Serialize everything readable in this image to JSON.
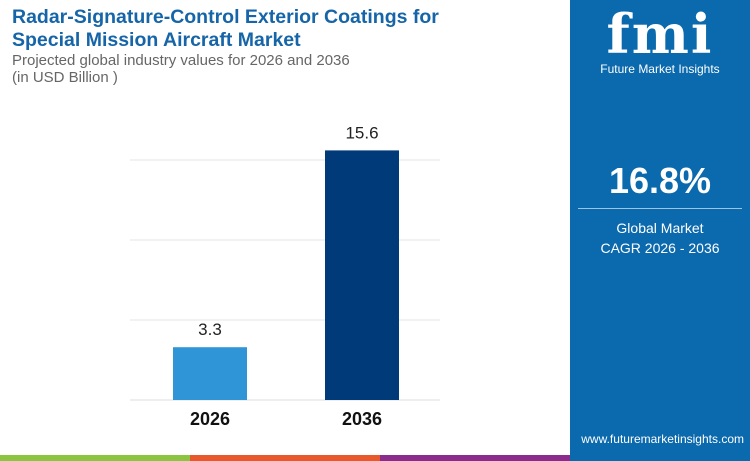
{
  "title_line1": "Radar-Signature-Control Exterior Coatings for",
  "title_line2": "Special Mission Aircraft Market",
  "subtitle_line1": "Projected global industry values for 2026 and 2036",
  "subtitle_line2": "(in USD Billion )",
  "chart_data": {
    "type": "bar",
    "categories": [
      "2026",
      "2036"
    ],
    "values": [
      3.3,
      15.6
    ],
    "data_labels": [
      "3.3",
      "15.6"
    ],
    "colors": [
      "#3095d6",
      "#003a78"
    ],
    "ylim": [
      0,
      17
    ],
    "grid": true,
    "xlabel": "",
    "ylabel": ""
  },
  "panel": {
    "brand": "fmi",
    "brand_name": "Future Market Insights",
    "cagr": "16.8%",
    "cagr_label1": "Global Market",
    "cagr_label2": "CAGR 2026 - 2036",
    "url": "www.futuremarketinsights.com",
    "bg": "#0b69ad"
  },
  "stripes": [
    "#8bc43f",
    "#e8582a",
    "#8b2c8c"
  ]
}
